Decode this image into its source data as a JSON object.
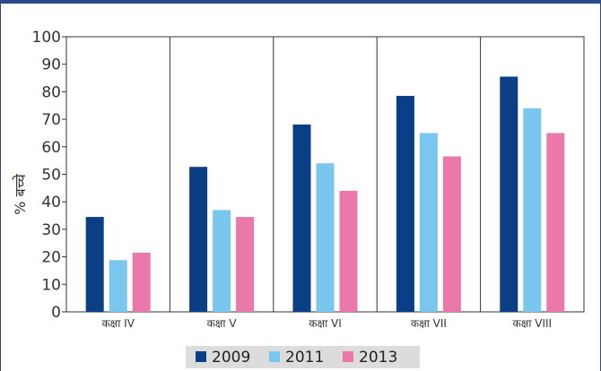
{
  "chart_data": {
    "type": "bar",
    "title": "",
    "xlabel": "",
    "ylabel": "% बच्चे",
    "ylim": [
      0,
      100
    ],
    "yticks": [
      0,
      10,
      20,
      30,
      40,
      50,
      60,
      70,
      80,
      90,
      100
    ],
    "categories": [
      "कक्षा IV",
      "कक्षा V",
      "कक्षा VI",
      "कक्षा VII",
      "कक्षा VIII"
    ],
    "series": [
      {
        "name": "2009",
        "color": "#0a3f86",
        "values": [
          34.5,
          52.7,
          68.1,
          78.5,
          85.5
        ]
      },
      {
        "name": "2011",
        "color": "#79c6ef",
        "values": [
          18.8,
          37.0,
          54.0,
          65.0,
          74.0
        ]
      },
      {
        "name": "2013",
        "color": "#ea78a8",
        "values": [
          21.5,
          34.5,
          44.0,
          56.5,
          65.0
        ]
      }
    ],
    "grid": "vertical-category-separators",
    "legend_position": "bottom"
  }
}
